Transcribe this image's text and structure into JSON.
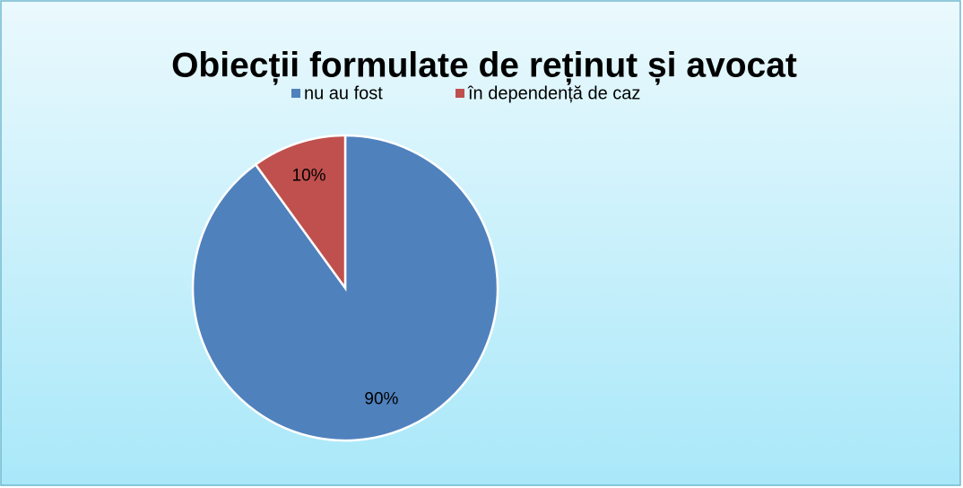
{
  "chart_data": {
    "type": "pie",
    "title": "Obiecții formulate de reținut și avocat",
    "categories": [
      "nu au fost",
      "în dependență de caz"
    ],
    "values": [
      90,
      10
    ],
    "value_labels": [
      "90%",
      "10%"
    ],
    "colors": [
      "#4f81bd",
      "#c0504d"
    ],
    "legend": "top"
  }
}
